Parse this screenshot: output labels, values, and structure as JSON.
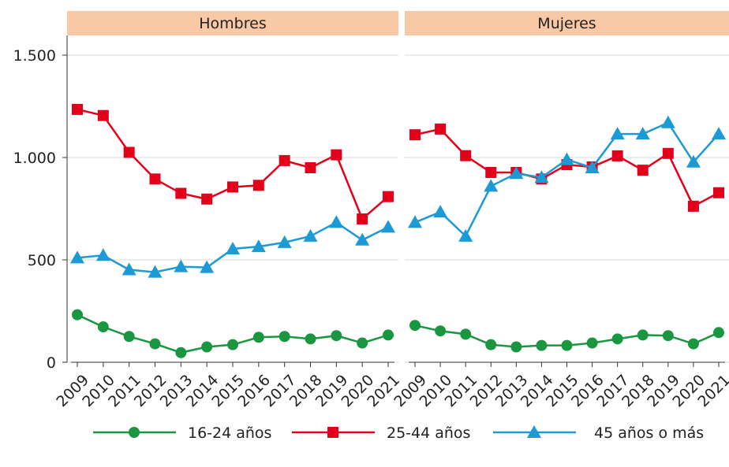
{
  "chart_data": [
    {
      "type": "line",
      "title": "Hombres",
      "categories": [
        "2009",
        "2010",
        "2011",
        "2012",
        "2013",
        "2014",
        "2015",
        "2016",
        "2017",
        "2018",
        "2019",
        "2020",
        "2021"
      ],
      "ylim": [
        0,
        1500
      ],
      "yticks": [
        0,
        500,
        {
          "value": 1000,
          "label": "1.000"
        },
        {
          "value": 1500,
          "label": "1.500"
        }
      ],
      "grid": true,
      "series": [
        {
          "name": "16-24 años",
          "color": "#1a9641",
          "marker": "circle",
          "values": [
            232,
            173,
            126,
            90,
            47,
            75,
            86,
            122,
            126,
            114,
            130,
            94,
            133
          ]
        },
        {
          "name": "25-44 años",
          "color": "#e3001b",
          "marker": "square",
          "values": [
            1235,
            1205,
            1025,
            895,
            825,
            797,
            856,
            864,
            985,
            950,
            1013,
            700,
            809
          ]
        },
        {
          "name": "45 años o más",
          "color": "#1b9ad6",
          "marker": "triangle",
          "values": [
            510,
            522,
            452,
            440,
            467,
            463,
            554,
            565,
            585,
            616,
            683,
            597,
            660
          ]
        }
      ]
    },
    {
      "type": "line",
      "title": "Mujeres",
      "categories": [
        "2009",
        "2010",
        "2011",
        "2012",
        "2013",
        "2014",
        "2015",
        "2016",
        "2017",
        "2018",
        "2019",
        "2020",
        "2021"
      ],
      "ylim": [
        0,
        1500
      ],
      "yticks": [
        0,
        500,
        1000,
        1500
      ],
      "grid": true,
      "series": [
        {
          "color": "#1a9641",
          "marker": "circle",
          "values": [
            180,
            153,
            137,
            86,
            75,
            82,
            82,
            94,
            114,
            133,
            130,
            90,
            145
          ]
        },
        {
          "color": "#e3001b",
          "marker": "square",
          "values": [
            1111,
            1139,
            1009,
            927,
            927,
            895,
            965,
            954,
            1008,
            938,
            1020,
            762,
            828
          ]
        },
        {
          "color": "#1b9ad6",
          "marker": "triangle",
          "values": [
            683,
            734,
            616,
            860,
            922,
            903,
            990,
            950,
            1115,
            1115,
            1170,
            978,
            1115
          ]
        }
      ]
    }
  ]
}
